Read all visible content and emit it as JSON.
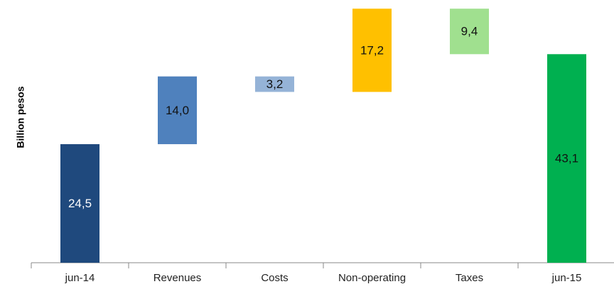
{
  "chart_data": {
    "type": "waterfall",
    "y_label": "Billion pesos",
    "categories": [
      "jun-14",
      "Revenues",
      "Costs",
      "Non-operating",
      "Taxes",
      "jun-15"
    ],
    "values": [
      24.5,
      14.0,
      -3.2,
      17.2,
      -9.4,
      43.1
    ],
    "value_labels": [
      "24,5",
      "14,0",
      "3,2",
      "17,2",
      "9,4",
      "43,1"
    ],
    "totals": [
      true,
      false,
      false,
      false,
      false,
      true
    ],
    "colors": [
      "#1f497d",
      "#4f81bd",
      "#95b3d7",
      "#ffc000",
      "#a0e08f",
      "#00b050"
    ],
    "ylim": [
      0,
      54
    ]
  }
}
